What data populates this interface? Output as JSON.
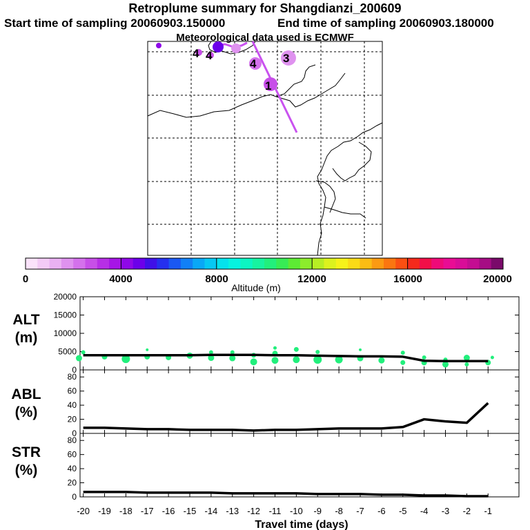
{
  "title": "Retroplume summary for Shangdianzi_200609",
  "start_label": "Start time of sampling 20060903.150000",
  "end_label": "End time of sampling 20060903.180000",
  "met_label": "Meteorological data used is ECMWF",
  "map_markers": [
    "4",
    "4",
    "4",
    "3",
    "1"
  ],
  "colorbar": {
    "ticks": [
      "0",
      "4000",
      "8000",
      "12000",
      "16000",
      "20000"
    ],
    "label": "Altitude (m)",
    "colors": [
      "#fbe3fb",
      "#f3cbf6",
      "#eab1f3",
      "#df92ef",
      "#d471ec",
      "#c74fe8",
      "#b72fe6",
      "#a615e6",
      "#8f08e8",
      "#6c00ea",
      "#3f10e8",
      "#2530ee",
      "#1a58f3",
      "#1180f6",
      "#09a8f6",
      "#06c8f2",
      "#05e2ec",
      "#07f3e0",
      "#0cf5c2",
      "#17f3a0",
      "#22ef7c",
      "#37ec55",
      "#5deb34",
      "#8cec2c",
      "#b7ee24",
      "#dcf21e",
      "#f6f21a",
      "#fadb17",
      "#fbbc14",
      "#fb9a12",
      "#fb7610",
      "#fb4f12",
      "#f52a1c",
      "#f20f48",
      "#ef0a78",
      "#e90c94",
      "#d90c98",
      "#c40d92",
      "#a60c84",
      "#7a0a6a"
    ]
  },
  "chart_data": [
    {
      "type": "line",
      "panel": "ALT",
      "ylabel": "ALT\n(m)",
      "ylim": [
        0,
        20000
      ],
      "yticks": [
        0,
        5000,
        10000,
        15000,
        20000
      ],
      "x": [
        -20,
        -19,
        -18,
        -17,
        -16,
        -15,
        -14,
        -13,
        -12,
        -11,
        -10,
        -9,
        -8,
        -7,
        -6,
        -5,
        -4,
        -3,
        -2,
        -1
      ],
      "values": [
        4000,
        4000,
        4000,
        4000,
        4000,
        4000,
        4100,
        4100,
        4100,
        4000,
        4000,
        3900,
        3800,
        3700,
        3700,
        3600,
        2500,
        2400,
        2400,
        2400
      ],
      "scatter": [
        [
          -20.2,
          3200,
          9
        ],
        [
          -20,
          4800,
          6
        ],
        [
          -19,
          3600,
          8
        ],
        [
          -18,
          3000,
          12
        ],
        [
          -17,
          3600,
          8
        ],
        [
          -17,
          5500,
          4
        ],
        [
          -16,
          3400,
          8
        ],
        [
          -15,
          3900,
          9
        ],
        [
          -14,
          3300,
          9
        ],
        [
          -14,
          4800,
          6
        ],
        [
          -13,
          3200,
          9
        ],
        [
          -13,
          4800,
          6
        ],
        [
          -12,
          2200,
          10
        ],
        [
          -12,
          4000,
          7
        ],
        [
          -11,
          2600,
          10
        ],
        [
          -11,
          4500,
          8
        ],
        [
          -11,
          6000,
          5
        ],
        [
          -10,
          2800,
          10
        ],
        [
          -10,
          5600,
          7
        ],
        [
          -9,
          2800,
          12
        ],
        [
          -9,
          4900,
          6
        ],
        [
          -8,
          2800,
          11
        ],
        [
          -7,
          3200,
          9
        ],
        [
          -7,
          5500,
          4
        ],
        [
          -6,
          2600,
          9
        ],
        [
          -5,
          2000,
          7
        ],
        [
          -5,
          4700,
          6
        ],
        [
          -4,
          2000,
          8
        ],
        [
          -4,
          3400,
          6
        ],
        [
          -3,
          1500,
          9
        ],
        [
          -3,
          2800,
          6
        ],
        [
          -2,
          1500,
          6
        ],
        [
          -2,
          3300,
          9
        ],
        [
          -1,
          2000,
          8
        ],
        [
          -0.8,
          3400,
          5
        ]
      ]
    },
    {
      "type": "line",
      "panel": "ABL",
      "ylabel": "ABL\n(%)",
      "ylim": [
        0,
        90
      ],
      "yticks": [
        0,
        20,
        40,
        60,
        80
      ],
      "x": [
        -20,
        -19,
        -18,
        -17,
        -16,
        -15,
        -14,
        -13,
        -12,
        -11,
        -10,
        -9,
        -8,
        -7,
        -6,
        -5,
        -4,
        -3,
        -2,
        -1
      ],
      "values": [
        8,
        8,
        7,
        6,
        6,
        5,
        5,
        5,
        4,
        5,
        5,
        6,
        7,
        7,
        7,
        9,
        20,
        17,
        15,
        43
      ]
    },
    {
      "type": "line",
      "panel": "STR",
      "ylabel": "STR\n(%)",
      "ylim": [
        0,
        90
      ],
      "yticks": [
        0,
        20,
        40,
        60,
        80
      ],
      "x": [
        -20,
        -19,
        -18,
        -17,
        -16,
        -15,
        -14,
        -13,
        -12,
        -11,
        -10,
        -9,
        -8,
        -7,
        -6,
        -5,
        -4,
        -3,
        -2,
        -1
      ],
      "values": [
        7,
        7,
        7,
        6,
        6,
        6,
        6,
        5,
        5,
        5,
        5,
        4,
        4,
        4,
        3,
        3,
        2,
        2,
        1,
        1
      ],
      "xlabel": "Travel time (days)",
      "xticks": [
        "-20",
        "-19",
        "-18",
        "-17",
        "-16",
        "-15",
        "-14",
        "-13",
        "-12",
        "-11",
        "-10",
        "-9",
        "-8",
        "-7",
        "-6",
        "-5",
        "-4",
        "-3",
        "-2",
        "-1"
      ]
    }
  ]
}
